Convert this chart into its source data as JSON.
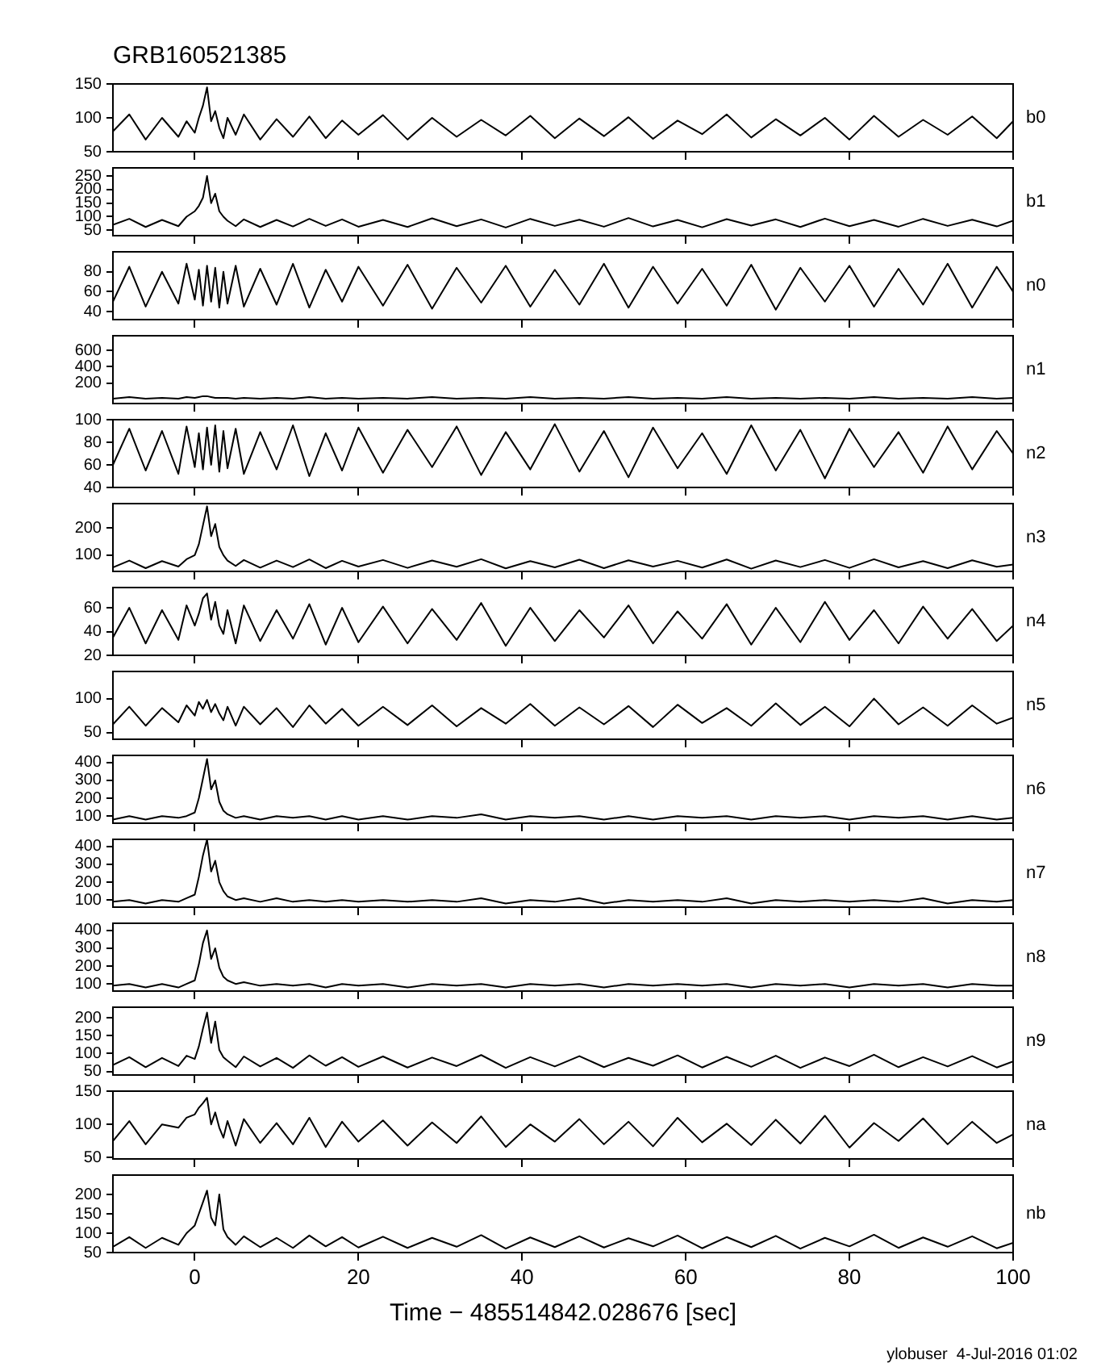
{
  "chart_data": [
    {
      "type": "line",
      "title": "GRB160521385",
      "x": [
        -10,
        -8,
        -6,
        -4,
        -2,
        -1,
        0,
        0.5,
        1,
        1.5,
        2,
        2.5,
        3,
        3.5,
        4,
        5,
        6,
        8,
        10,
        12,
        14,
        16,
        18,
        20,
        23,
        26,
        29,
        32,
        35,
        38,
        41,
        44,
        47,
        50,
        53,
        56,
        59,
        62,
        65,
        68,
        71,
        74,
        77,
        80,
        83,
        86,
        89,
        92,
        95,
        98,
        100
      ],
      "xlim": [
        -10,
        100
      ],
      "xticks": [
        0,
        20,
        40,
        60,
        80,
        100
      ],
      "ylim": [
        50,
        150
      ],
      "yticks": [
        50,
        100,
        150
      ],
      "tick_labels": "y",
      "series": [
        {
          "name": "b0",
          "color": "#000000",
          "values": [
            80,
            105,
            68,
            100,
            72,
            95,
            78,
            100,
            118,
            145,
            95,
            110,
            85,
            70,
            100,
            75,
            105,
            68,
            98,
            72,
            102,
            70,
            96,
            75,
            104,
            68,
            100,
            72,
            97,
            74,
            103,
            70,
            99,
            73,
            101,
            69,
            96,
            76,
            105,
            71,
            98,
            74,
            100,
            68,
            103,
            72,
            97,
            75,
            102,
            70,
            95
          ]
        }
      ]
    },
    {
      "type": "line",
      "x": [
        -10,
        -8,
        -6,
        -4,
        -2,
        -1,
        0,
        0.5,
        1,
        1.5,
        2,
        2.5,
        3,
        3.5,
        4,
        5,
        6,
        8,
        10,
        12,
        14,
        16,
        18,
        20,
        23,
        26,
        29,
        32,
        35,
        38,
        41,
        44,
        47,
        50,
        53,
        56,
        59,
        62,
        65,
        68,
        71,
        74,
        77,
        80,
        83,
        86,
        89,
        92,
        95,
        98,
        100
      ],
      "xlim": [
        -10,
        100
      ],
      "xticks": [
        0,
        20,
        40,
        60,
        80,
        100
      ],
      "ylim": [
        30,
        280
      ],
      "yticks": [
        50,
        100,
        150,
        200,
        250
      ],
      "tick_labels": "y",
      "series": [
        {
          "name": "b1",
          "color": "#000000",
          "values": [
            70,
            92,
            62,
            88,
            65,
            100,
            120,
            140,
            170,
            250,
            150,
            185,
            120,
            100,
            85,
            65,
            90,
            62,
            88,
            64,
            92,
            66,
            90,
            63,
            88,
            62,
            94,
            65,
            90,
            60,
            92,
            66,
            89,
            63,
            95,
            64,
            88,
            61,
            91,
            67,
            90,
            62,
            93,
            65,
            88,
            63,
            92,
            66,
            89,
            64,
            85
          ]
        }
      ]
    },
    {
      "type": "line",
      "x": [
        -10,
        -8,
        -6,
        -4,
        -2,
        -1,
        0,
        0.5,
        1,
        1.5,
        2,
        2.5,
        3,
        3.5,
        4,
        5,
        6,
        8,
        10,
        12,
        14,
        16,
        18,
        20,
        23,
        26,
        29,
        32,
        35,
        38,
        41,
        44,
        47,
        50,
        53,
        56,
        59,
        62,
        65,
        68,
        71,
        74,
        77,
        80,
        83,
        86,
        89,
        92,
        95,
        98,
        100
      ],
      "xlim": [
        -10,
        100
      ],
      "xticks": [
        0,
        20,
        40,
        60,
        80,
        100
      ],
      "ylim": [
        32,
        100
      ],
      "yticks": [
        40,
        60,
        80
      ],
      "tick_labels": "y",
      "series": [
        {
          "name": "n0",
          "color": "#000000",
          "values": [
            50,
            85,
            45,
            80,
            48,
            88,
            52,
            82,
            46,
            86,
            50,
            84,
            44,
            80,
            48,
            86,
            45,
            83,
            47,
            88,
            44,
            82,
            50,
            85,
            46,
            87,
            43,
            84,
            49,
            86,
            45,
            82,
            47,
            88,
            44,
            85,
            48,
            83,
            46,
            87,
            42,
            84,
            50,
            86,
            45,
            83,
            47,
            88,
            44,
            85,
            60
          ]
        }
      ]
    },
    {
      "type": "line",
      "x": [
        -10,
        -8,
        -6,
        -4,
        -2,
        -1,
        0,
        0.5,
        1,
        1.5,
        2,
        2.5,
        3,
        3.5,
        4,
        5,
        6,
        8,
        10,
        12,
        14,
        16,
        18,
        20,
        23,
        26,
        29,
        32,
        35,
        38,
        41,
        44,
        47,
        50,
        53,
        56,
        59,
        62,
        65,
        68,
        71,
        74,
        77,
        80,
        83,
        86,
        89,
        92,
        95,
        98,
        100
      ],
      "xlim": [
        -10,
        100
      ],
      "xticks": [
        0,
        20,
        40,
        60,
        80,
        100
      ],
      "ylim": [
        -50,
        780
      ],
      "yticks": [
        200,
        400,
        600
      ],
      "tick_labels": "y",
      "series": [
        {
          "name": "n1",
          "color": "#000000",
          "values": [
            10,
            30,
            10,
            20,
            10,
            30,
            20,
            30,
            40,
            40,
            30,
            20,
            20,
            20,
            20,
            10,
            20,
            10,
            20,
            10,
            30,
            10,
            20,
            10,
            20,
            10,
            30,
            10,
            20,
            10,
            30,
            10,
            20,
            10,
            30,
            10,
            20,
            10,
            30,
            10,
            20,
            10,
            20,
            10,
            30,
            10,
            20,
            10,
            30,
            10,
            20
          ]
        }
      ]
    },
    {
      "type": "line",
      "x": [
        -10,
        -8,
        -6,
        -4,
        -2,
        -1,
        0,
        0.5,
        1,
        1.5,
        2,
        2.5,
        3,
        3.5,
        4,
        5,
        6,
        8,
        10,
        12,
        14,
        16,
        18,
        20,
        23,
        26,
        29,
        32,
        35,
        38,
        41,
        44,
        47,
        50,
        53,
        56,
        59,
        62,
        65,
        68,
        71,
        74,
        77,
        80,
        83,
        86,
        89,
        92,
        95,
        98,
        100
      ],
      "xlim": [
        -10,
        100
      ],
      "xticks": [
        0,
        20,
        40,
        60,
        80,
        100
      ],
      "ylim": [
        40,
        100
      ],
      "yticks": [
        40,
        60,
        80,
        100
      ],
      "tick_labels": "y",
      "series": [
        {
          "name": "n2",
          "color": "#000000",
          "values": [
            60,
            92,
            55,
            90,
            52,
            94,
            58,
            88,
            56,
            93,
            60,
            95,
            54,
            90,
            57,
            92,
            52,
            89,
            56,
            95,
            50,
            88,
            55,
            93,
            53,
            91,
            58,
            94,
            51,
            89,
            56,
            96,
            54,
            90,
            49,
            93,
            57,
            88,
            52,
            95,
            55,
            91,
            48,
            92,
            58,
            89,
            53,
            94,
            56,
            90,
            70
          ]
        }
      ]
    },
    {
      "type": "line",
      "x": [
        -10,
        -8,
        -6,
        -4,
        -2,
        -1,
        0,
        0.5,
        1,
        1.5,
        2,
        2.5,
        3,
        3.5,
        4,
        5,
        6,
        8,
        10,
        12,
        14,
        16,
        18,
        20,
        23,
        26,
        29,
        32,
        35,
        38,
        41,
        44,
        47,
        50,
        53,
        56,
        59,
        62,
        65,
        68,
        71,
        74,
        77,
        80,
        83,
        86,
        89,
        92,
        95,
        98,
        100
      ],
      "xlim": [
        -10,
        100
      ],
      "xticks": [
        0,
        20,
        40,
        60,
        80,
        100
      ],
      "ylim": [
        40,
        290
      ],
      "yticks": [
        100,
        200
      ],
      "tick_labels": "y",
      "series": [
        {
          "name": "n3",
          "color": "#000000",
          "values": [
            55,
            80,
            52,
            78,
            58,
            85,
            100,
            140,
            210,
            280,
            170,
            215,
            130,
            100,
            80,
            60,
            82,
            54,
            80,
            56,
            84,
            52,
            79,
            58,
            82,
            53,
            80,
            57,
            85,
            51,
            78,
            55,
            83,
            52,
            81,
            58,
            79,
            54,
            84,
            50,
            80,
            56,
            82,
            53,
            85,
            55,
            78,
            52,
            81,
            57,
            65
          ]
        }
      ]
    },
    {
      "type": "line",
      "x": [
        -10,
        -8,
        -6,
        -4,
        -2,
        -1,
        0,
        0.5,
        1,
        1.5,
        2,
        2.5,
        3,
        3.5,
        4,
        5,
        6,
        8,
        10,
        12,
        14,
        16,
        18,
        20,
        23,
        26,
        29,
        32,
        35,
        38,
        41,
        44,
        47,
        50,
        53,
        56,
        59,
        62,
        65,
        68,
        71,
        74,
        77,
        80,
        83,
        86,
        89,
        92,
        95,
        98,
        100
      ],
      "xlim": [
        -10,
        100
      ],
      "xticks": [
        0,
        20,
        40,
        60,
        80,
        100
      ],
      "ylim": [
        20,
        77
      ],
      "yticks": [
        20,
        40,
        60
      ],
      "tick_labels": "y",
      "series": [
        {
          "name": "n4",
          "color": "#000000",
          "values": [
            35,
            60,
            30,
            58,
            33,
            62,
            45,
            55,
            68,
            72,
            50,
            65,
            45,
            38,
            58,
            30,
            62,
            32,
            58,
            34,
            63,
            29,
            60,
            31,
            61,
            30,
            59,
            33,
            64,
            28,
            60,
            32,
            58,
            35,
            62,
            30,
            57,
            34,
            63,
            29,
            60,
            31,
            65,
            33,
            58,
            30,
            61,
            34,
            59,
            32,
            45
          ]
        }
      ]
    },
    {
      "type": "line",
      "x": [
        -10,
        -8,
        -6,
        -4,
        -2,
        -1,
        0,
        0.5,
        1,
        1.5,
        2,
        2.5,
        3,
        3.5,
        4,
        5,
        6,
        8,
        10,
        12,
        14,
        16,
        18,
        20,
        23,
        26,
        29,
        32,
        35,
        38,
        41,
        44,
        47,
        50,
        53,
        56,
        59,
        62,
        65,
        68,
        71,
        74,
        77,
        80,
        83,
        86,
        89,
        92,
        95,
        98,
        100
      ],
      "xlim": [
        -10,
        100
      ],
      "xticks": [
        0,
        20,
        40,
        60,
        80,
        100
      ],
      "ylim": [
        40,
        140
      ],
      "yticks": [
        50,
        100
      ],
      "tick_labels": "y",
      "series": [
        {
          "name": "n5",
          "color": "#000000",
          "values": [
            62,
            88,
            60,
            86,
            65,
            90,
            75,
            95,
            85,
            98,
            80,
            92,
            78,
            68,
            88,
            60,
            88,
            62,
            86,
            58,
            90,
            63,
            85,
            60,
            88,
            61,
            90,
            59,
            86,
            63,
            92,
            60,
            87,
            62,
            89,
            58,
            91,
            64,
            86,
            60,
            93,
            61,
            88,
            59,
            100,
            62,
            87,
            60,
            90,
            63,
            72
          ]
        }
      ]
    },
    {
      "type": "line",
      "x": [
        -10,
        -8,
        -6,
        -4,
        -2,
        -1,
        0,
        0.5,
        1,
        1.5,
        2,
        2.5,
        3,
        3.5,
        4,
        5,
        6,
        8,
        10,
        12,
        14,
        16,
        18,
        20,
        23,
        26,
        29,
        32,
        35,
        38,
        41,
        44,
        47,
        50,
        53,
        56,
        59,
        62,
        65,
        68,
        71,
        74,
        77,
        80,
        83,
        86,
        89,
        92,
        95,
        98,
        100
      ],
      "xlim": [
        -10,
        100
      ],
      "xticks": [
        0,
        20,
        40,
        60,
        80,
        100
      ],
      "ylim": [
        60,
        440
      ],
      "yticks": [
        100,
        200,
        300,
        400
      ],
      "tick_labels": "y",
      "series": [
        {
          "name": "n6",
          "color": "#000000",
          "values": [
            80,
            100,
            80,
            100,
            90,
            100,
            120,
            200,
            310,
            420,
            250,
            300,
            180,
            130,
            110,
            90,
            100,
            80,
            100,
            90,
            100,
            80,
            100,
            80,
            100,
            80,
            100,
            90,
            110,
            80,
            100,
            90,
            100,
            80,
            100,
            80,
            100,
            90,
            100,
            80,
            100,
            90,
            100,
            80,
            100,
            90,
            100,
            80,
            100,
            80,
            90
          ]
        }
      ]
    },
    {
      "type": "line",
      "x": [
        -10,
        -8,
        -6,
        -4,
        -2,
        -1,
        0,
        0.5,
        1,
        1.5,
        2,
        2.5,
        3,
        3.5,
        4,
        5,
        6,
        8,
        10,
        12,
        14,
        16,
        18,
        20,
        23,
        26,
        29,
        32,
        35,
        38,
        41,
        44,
        47,
        50,
        53,
        56,
        59,
        62,
        65,
        68,
        71,
        74,
        77,
        80,
        83,
        86,
        89,
        92,
        95,
        98,
        100
      ],
      "xlim": [
        -10,
        100
      ],
      "xticks": [
        0,
        20,
        40,
        60,
        80,
        100
      ],
      "ylim": [
        60,
        440
      ],
      "yticks": [
        100,
        200,
        300,
        400
      ],
      "tick_labels": "y",
      "series": [
        {
          "name": "n7",
          "color": "#000000",
          "values": [
            90,
            100,
            80,
            100,
            90,
            110,
            130,
            230,
            350,
            440,
            260,
            320,
            200,
            150,
            120,
            100,
            110,
            90,
            110,
            90,
            100,
            90,
            100,
            90,
            100,
            90,
            100,
            90,
            110,
            80,
            100,
            90,
            110,
            80,
            100,
            90,
            100,
            90,
            110,
            80,
            100,
            90,
            100,
            90,
            100,
            90,
            110,
            80,
            100,
            90,
            100
          ]
        }
      ]
    },
    {
      "type": "line",
      "x": [
        -10,
        -8,
        -6,
        -4,
        -2,
        -1,
        0,
        0.5,
        1,
        1.5,
        2,
        2.5,
        3,
        3.5,
        4,
        5,
        6,
        8,
        10,
        12,
        14,
        16,
        18,
        20,
        23,
        26,
        29,
        32,
        35,
        38,
        41,
        44,
        47,
        50,
        53,
        56,
        59,
        62,
        65,
        68,
        71,
        74,
        77,
        80,
        83,
        86,
        89,
        92,
        95,
        98,
        100
      ],
      "xlim": [
        -10,
        100
      ],
      "xticks": [
        0,
        20,
        40,
        60,
        80,
        100
      ],
      "ylim": [
        60,
        440
      ],
      "yticks": [
        100,
        200,
        300,
        400
      ],
      "tick_labels": "y",
      "series": [
        {
          "name": "n8",
          "color": "#000000",
          "values": [
            90,
            100,
            80,
            100,
            80,
            100,
            120,
            210,
            330,
            400,
            240,
            300,
            190,
            140,
            120,
            100,
            110,
            90,
            100,
            90,
            100,
            80,
            100,
            90,
            100,
            80,
            100,
            90,
            100,
            80,
            100,
            90,
            100,
            80,
            100,
            90,
            100,
            90,
            100,
            80,
            100,
            90,
            100,
            80,
            100,
            90,
            100,
            80,
            100,
            90,
            90
          ]
        }
      ]
    },
    {
      "type": "line",
      "x": [
        -10,
        -8,
        -6,
        -4,
        -2,
        -1,
        0,
        0.5,
        1,
        1.5,
        2,
        2.5,
        3,
        3.5,
        4,
        5,
        6,
        8,
        10,
        12,
        14,
        16,
        18,
        20,
        23,
        26,
        29,
        32,
        35,
        38,
        41,
        44,
        47,
        50,
        53,
        56,
        59,
        62,
        65,
        68,
        71,
        74,
        77,
        80,
        83,
        86,
        89,
        92,
        95,
        98,
        100
      ],
      "xlim": [
        -10,
        100
      ],
      "xticks": [
        0,
        20,
        40,
        60,
        80,
        100
      ],
      "ylim": [
        40,
        230
      ],
      "yticks": [
        50,
        100,
        150,
        200
      ],
      "tick_labels": "y",
      "series": [
        {
          "name": "n9",
          "color": "#000000",
          "values": [
            68,
            90,
            62,
            88,
            65,
            94,
            85,
            120,
            170,
            215,
            130,
            190,
            110,
            90,
            80,
            62,
            92,
            64,
            88,
            60,
            95,
            66,
            90,
            63,
            92,
            61,
            89,
            65,
            96,
            60,
            90,
            64,
            93,
            62,
            88,
            66,
            95,
            61,
            91,
            63,
            94,
            60,
            89,
            65,
            97,
            62,
            90,
            64,
            93,
            61,
            78
          ]
        }
      ]
    },
    {
      "type": "line",
      "x": [
        -10,
        -8,
        -6,
        -4,
        -2,
        -1,
        0,
        0.5,
        1,
        1.5,
        2,
        2.5,
        3,
        3.5,
        4,
        5,
        6,
        8,
        10,
        12,
        14,
        16,
        18,
        20,
        23,
        26,
        29,
        32,
        35,
        38,
        41,
        44,
        47,
        50,
        53,
        56,
        59,
        62,
        65,
        68,
        71,
        74,
        77,
        80,
        83,
        86,
        89,
        92,
        95,
        98,
        100
      ],
      "xlim": [
        -10,
        100
      ],
      "xticks": [
        0,
        20,
        40,
        60,
        80,
        100
      ],
      "ylim": [
        48,
        150
      ],
      "yticks": [
        50,
        100,
        150
      ],
      "tick_labels": "y",
      "series": [
        {
          "name": "na",
          "color": "#000000",
          "values": [
            75,
            105,
            70,
            100,
            95,
            110,
            115,
            125,
            132,
            140,
            100,
            118,
            95,
            80,
            105,
            68,
            108,
            72,
            102,
            70,
            110,
            66,
            104,
            74,
            106,
            68,
            103,
            72,
            112,
            66,
            100,
            74,
            108,
            70,
            104,
            67,
            110,
            73,
            101,
            69,
            107,
            71,
            113,
            65,
            102,
            75,
            109,
            70,
            104,
            72,
            85
          ]
        }
      ]
    },
    {
      "type": "line",
      "xlabel": "Time − 485514842.028676 [sec]",
      "annotations": [
        "ylobuser  4-Jul-2016 01:02"
      ],
      "x": [
        -10,
        -8,
        -6,
        -4,
        -2,
        -1,
        0,
        0.5,
        1,
        1.5,
        2,
        2.5,
        3,
        3.5,
        4,
        5,
        6,
        8,
        10,
        12,
        14,
        16,
        18,
        20,
        23,
        26,
        29,
        32,
        35,
        38,
        41,
        44,
        47,
        50,
        53,
        56,
        59,
        62,
        65,
        68,
        71,
        74,
        77,
        80,
        83,
        86,
        89,
        92,
        95,
        98,
        100
      ],
      "xlim": [
        -10,
        100
      ],
      "xticks": [
        0,
        20,
        40,
        60,
        80,
        100
      ],
      "ylim": [
        50,
        250
      ],
      "yticks": [
        50,
        100,
        150,
        200
      ],
      "series": [
        {
          "name": "nb",
          "color": "#000000",
          "values": [
            65,
            90,
            62,
            88,
            70,
            100,
            120,
            150,
            180,
            210,
            140,
            120,
            200,
            110,
            90,
            70,
            92,
            64,
            88,
            62,
            94,
            66,
            90,
            63,
            91,
            62,
            88,
            65,
            95,
            60,
            89,
            64,
            92,
            63,
            87,
            66,
            94,
            61,
            90,
            64,
            93,
            60,
            88,
            66,
            96,
            62,
            89,
            65,
            92,
            61,
            75
          ]
        }
      ]
    }
  ]
}
